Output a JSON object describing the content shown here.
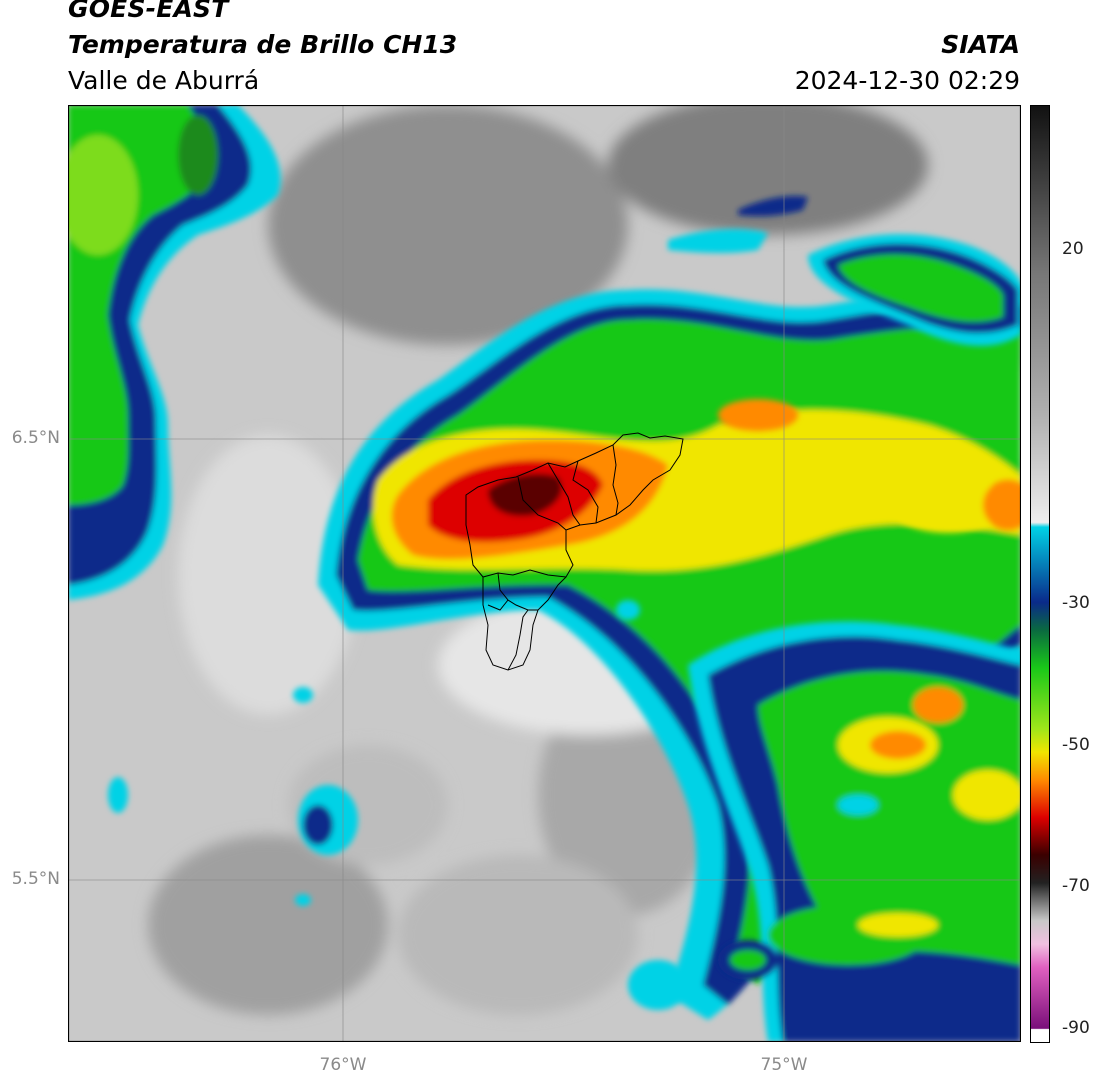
{
  "header": {
    "satellite": "GOES-EAST",
    "product": "Temperatura de Brillo CH13",
    "region": "Valle de Aburrá",
    "agency": "SIATA",
    "datetime": "2024-12-30 02:29"
  },
  "map": {
    "lat_labels": [
      "6.5°N",
      "5.5°N"
    ],
    "lon_labels": [
      "76°W",
      "75°W"
    ],
    "grid": true,
    "lon_range": [
      -76.62,
      -74.47
    ],
    "lat_range": [
      5.19,
      7.25
    ],
    "overlay": "municipality boundaries of Valle de Aburrá (black outlines)"
  },
  "colorbar": {
    "ticks": [
      "20",
      "-30",
      "-50",
      "-70",
      "-90"
    ],
    "range": [
      -92,
      33
    ],
    "colors": {
      "warm_top": "#111111",
      "gray_mid": "#9a9a9a",
      "light": "#eeeeee",
      "cyan": "#00d2e6",
      "blue": "#0a2a8a",
      "green": "#19c819",
      "yellow": "#f0e600",
      "orange": "#ff8a00",
      "red": "#dd0000",
      "dark_red": "#3a0000",
      "pink": "#e060c0",
      "purple": "#7a0f7a"
    }
  }
}
